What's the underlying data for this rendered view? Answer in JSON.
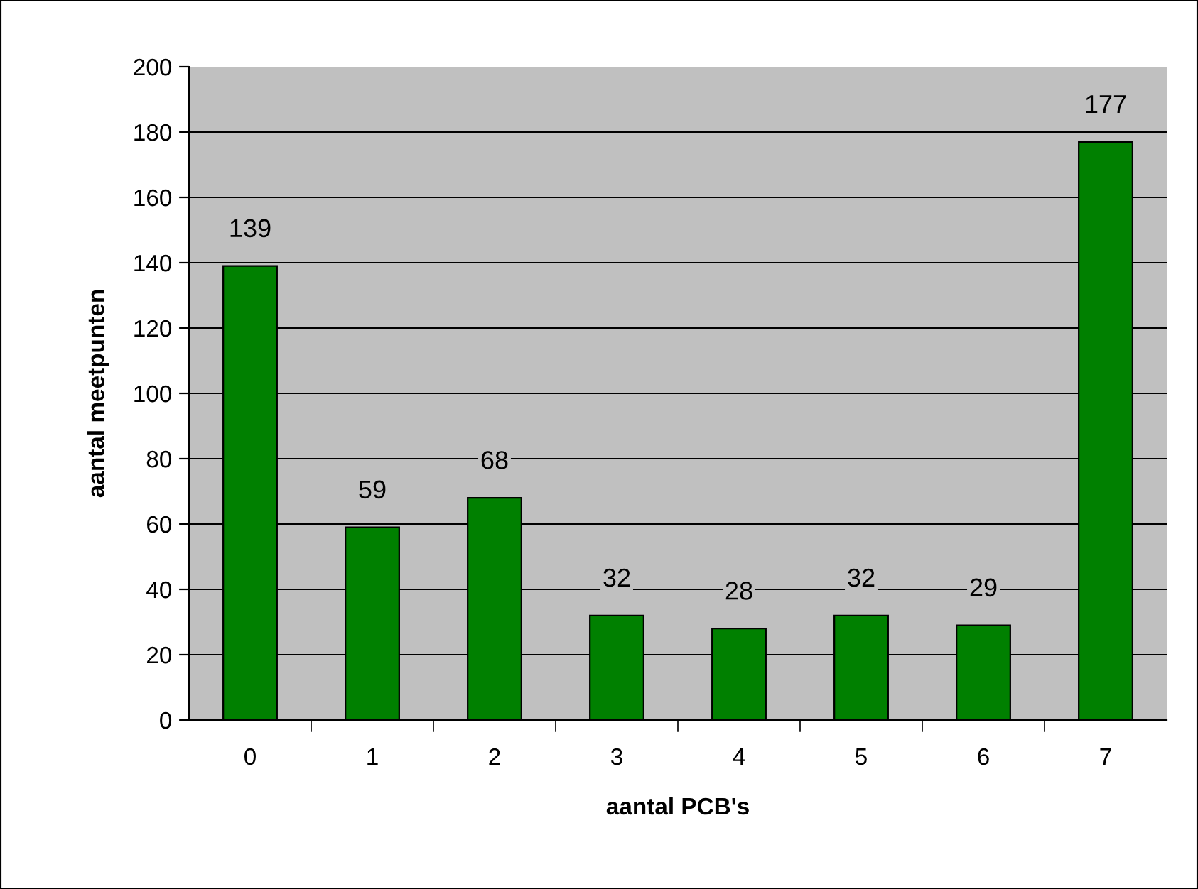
{
  "chart_data": {
    "type": "bar",
    "xlabel": "aantal PCB's",
    "ylabel": "aantal meetpunten",
    "categories": [
      "0",
      "1",
      "2",
      "3",
      "4",
      "5",
      "6",
      "7"
    ],
    "values": [
      139,
      59,
      68,
      32,
      28,
      32,
      29,
      177
    ],
    "color": "#008000",
    "ylim": [
      0,
      200
    ],
    "yticks": [
      0,
      20,
      40,
      60,
      80,
      100,
      120,
      140,
      160,
      180,
      200
    ],
    "grid": "y",
    "data_labels": true
  }
}
